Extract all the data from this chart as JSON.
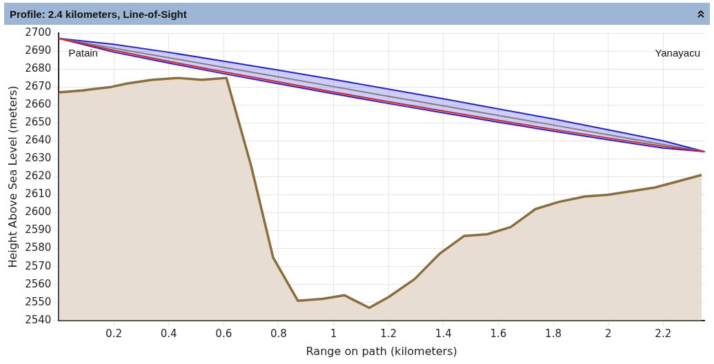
{
  "chart_data": {
    "type": "line",
    "title": "Profile: 2.4 kilometers, Line-of-Sight",
    "xlabel": "Range on path (kilometers)",
    "ylabel": "Height Above Sea Level (meters)",
    "annotations": [
      "Patain",
      "Yanayacu"
    ],
    "x": [
      0,
      0.2,
      0.4,
      0.6,
      0.8,
      1.0,
      1.2,
      1.4,
      1.6,
      1.8,
      2.0,
      2.2,
      2.35
    ],
    "series": [
      {
        "type": "area",
        "color": "#8b6d3a",
        "x": [
          0,
          0.085,
          0.135,
          0.19,
          0.25,
          0.34,
          0.435,
          0.52,
          0.61,
          0.7,
          0.78,
          0.87,
          0.96,
          1.04,
          1.13,
          1.2,
          1.295,
          1.385,
          1.475,
          1.56,
          1.645,
          1.735,
          1.82,
          1.915,
          2.0,
          2.17,
          2.34
        ],
        "values": [
          2667,
          2668,
          2669,
          2670,
          2672,
          2674,
          2675,
          2674,
          2675,
          2626,
          2575,
          2551,
          2552,
          2554,
          2547,
          2553,
          2563,
          2577,
          2587,
          2588,
          2592,
          2602,
          2606,
          2609,
          2610,
          2614,
          2621
        ]
      },
      {
        "color": "#e02020",
        "values": [
          2697,
          2690.4,
          2684.3,
          2678.4,
          2672.8,
          2667.2,
          2661.8,
          2656.6,
          2651.4,
          2646.4,
          2641.6,
          2637,
          2634
        ]
      },
      {
        "color": "#808080",
        "values": [
          2697,
          2691.6,
          2686.3,
          2680.9,
          2675.6,
          2670.2,
          2664.8,
          2659.5,
          2654.1,
          2648.8,
          2643.4,
          2638,
          2634
        ],
        "lower": [
          2697,
          2689.4,
          2683.3,
          2677.4,
          2671.8,
          2666.2,
          2660.8,
          2655.6,
          2650.4,
          2645.4,
          2640.6,
          2636,
          2634
        ],
        "upper": [
          2697,
          2693.8,
          2689.3,
          2684.4,
          2679.4,
          2674.2,
          2668.8,
          2663.4,
          2657.8,
          2652.2,
          2646.2,
          2640,
          2634
        ]
      }
    ],
    "xlim": [
      0,
      2.35
    ],
    "xticks": [
      0.2,
      0.4,
      0.6,
      0.8,
      1,
      1.2,
      1.4,
      1.6,
      1.8,
      2,
      2.2
    ],
    "ylim": [
      2540,
      2700
    ],
    "yticks": [
      2540,
      2550,
      2560,
      2570,
      2580,
      2590,
      2600,
      2610,
      2620,
      2630,
      2640,
      2650,
      2660,
      2670,
      2680,
      2690,
      2700
    ],
    "grid": true,
    "legend": false,
    "marker": "none",
    "line_style": "solid"
  }
}
